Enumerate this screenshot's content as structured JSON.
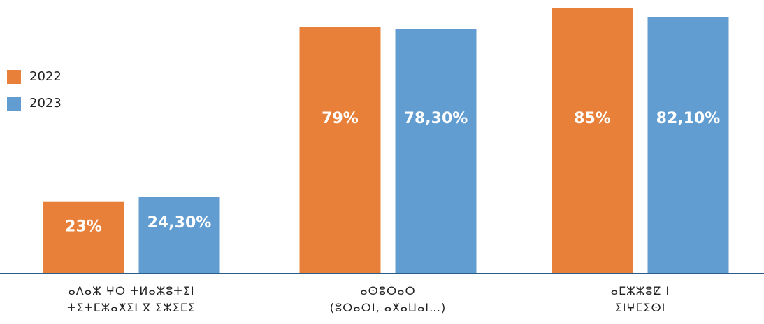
{
  "chart_data": {
    "type": "bar",
    "categories": [
      "ⴰⴷⴰⵣ ⵖⵔ ⵜⵍⴰⵣⵓⵜⵉⵏ\nⵜⵉⵜⵎⵣⴰⵅⵉⵏ ⴳ ⵉⵣⵉⵎⵉ",
      "ⴰⵙⵓⵔⴰⵔ\n(ⵓⵔⴰⵔⵏ, ⴰⵅⴰⵡⴰⵏ…)",
      "ⴰⵎⵣⵣⵓⵇ ⵏ\nⵉⵏⵖⵎⵉⵙⵏ"
    ],
    "series": [
      {
        "name": "2022",
        "color": "#e8803a",
        "values": [
          23,
          79,
          85
        ],
        "value_labels": [
          "23%",
          "79%",
          "85%"
        ]
      },
      {
        "name": "2023",
        "color": "#629dd1",
        "values": [
          24.3,
          78.3,
          82.1
        ],
        "value_labels": [
          "24,30%",
          "78,30%",
          "82,10%"
        ]
      }
    ],
    "ylim": [
      0,
      85
    ],
    "legend": "left"
  }
}
